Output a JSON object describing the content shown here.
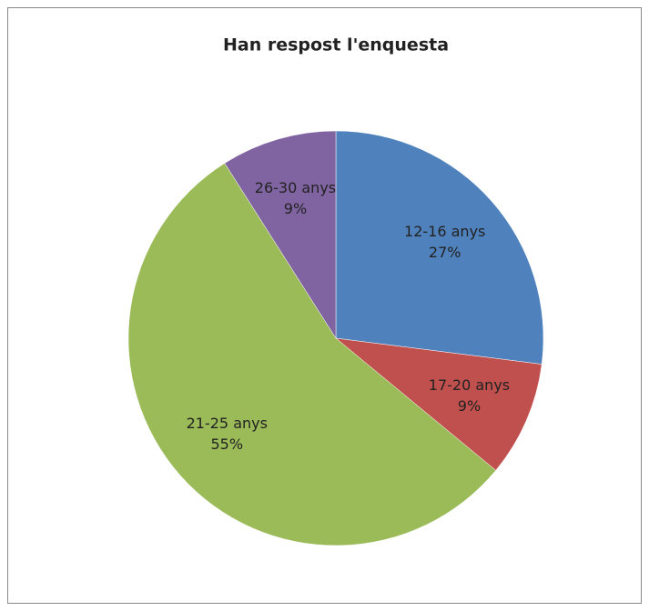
{
  "chart_data": {
    "type": "pie",
    "title": "Han respost l'enquesta",
    "categories": [
      "12-16 anys",
      "17-20 anys",
      "21-25 anys",
      "26-30 anys"
    ],
    "values": [
      27,
      9,
      55,
      9
    ],
    "value_labels": [
      "27%",
      "9%",
      "55%",
      "9%"
    ],
    "colors": [
      "#4f81bd",
      "#c0504d",
      "#9bbb59",
      "#8064a2"
    ]
  }
}
